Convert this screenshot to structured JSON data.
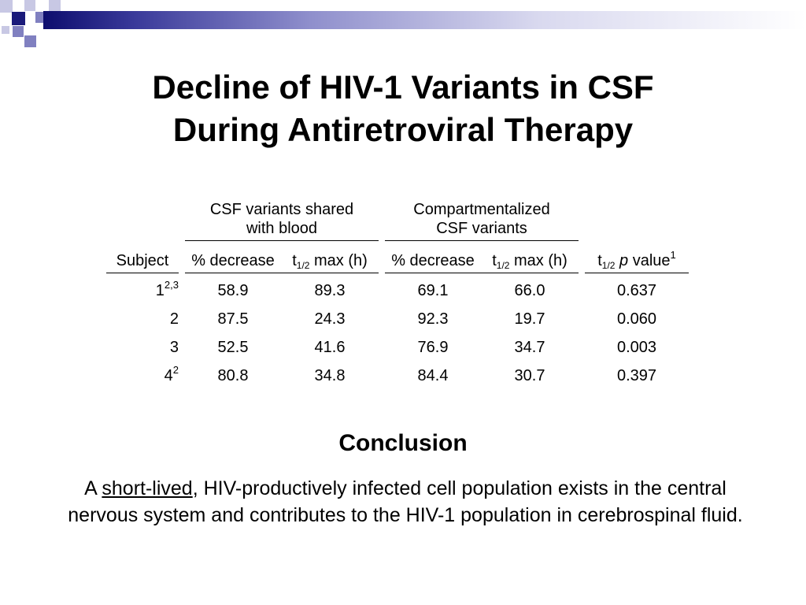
{
  "title": {
    "line1": "Decline of HIV-1 Variants in CSF",
    "line2": "During Antiretroviral Therapy"
  },
  "table": {
    "group_headers": {
      "shared_line1": "CSF variants shared",
      "shared_line2": "with blood",
      "comp_line1": "Compartmentalized",
      "comp_line2": "CSF variants"
    },
    "columns": {
      "subject": "Subject",
      "pct_decrease": "% decrease",
      "t_prefix": "t",
      "t_sub": "1/2",
      "max_h": " max (h)",
      "p_word": "p",
      "value_word": " value",
      "p_sup": "1"
    },
    "rows": [
      {
        "subject": "1",
        "sup": "2,3",
        "shared_pct": "58.9",
        "shared_t": "89.3",
        "comp_pct": "69.1",
        "comp_t": "66.0",
        "p": "0.637"
      },
      {
        "subject": "2",
        "sup": "",
        "shared_pct": "87.5",
        "shared_t": "24.3",
        "comp_pct": "92.3",
        "comp_t": "19.7",
        "p": "0.060"
      },
      {
        "subject": "3",
        "sup": "",
        "shared_pct": "52.5",
        "shared_t": "41.6",
        "comp_pct": "76.9",
        "comp_t": "34.7",
        "p": "0.003"
      },
      {
        "subject": "4",
        "sup": "2",
        "shared_pct": "80.8",
        "shared_t": "34.8",
        "comp_pct": "84.4",
        "comp_t": "30.7",
        "p": "0.397"
      }
    ]
  },
  "conclusion": {
    "heading": "Conclusion",
    "prefix": "A ",
    "underlined": "short-lived",
    "rest": ", HIV-productively infected cell population exists in the central nervous system and contributes to the HIV-1 population in cerebrospinal fluid."
  },
  "colors": {
    "deco_dark": "#1a1a7a",
    "deco_mid": "#8080c0",
    "deco_light": "#c8c8e4"
  }
}
